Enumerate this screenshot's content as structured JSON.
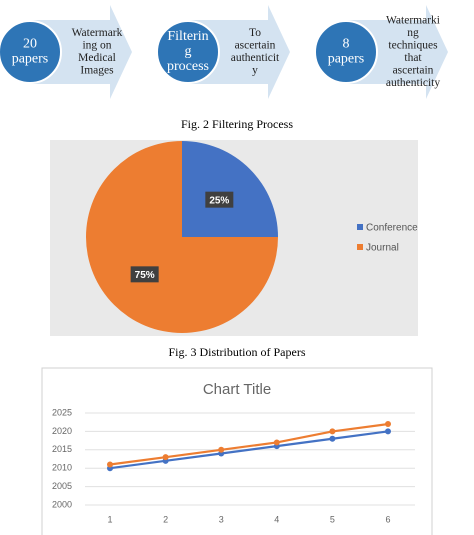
{
  "diagram": {
    "steps": [
      {
        "circle": [
          "20",
          "papers"
        ],
        "arrow": [
          "Watermark",
          "ing on",
          "Medical",
          "Images"
        ]
      },
      {
        "circle": [
          "Filterin",
          "g",
          "process"
        ],
        "arrow": [
          "To",
          "ascertain",
          "authenticit",
          "y"
        ]
      },
      {
        "circle": [
          "8",
          "papers"
        ],
        "arrow": [
          "Watermarki",
          "ng",
          "techniques",
          "that",
          "ascertain",
          "authenticity"
        ]
      }
    ]
  },
  "captions": [
    "Fig. 2 Filtering Process",
    "Fig. 3 Distribution of Papers"
  ],
  "chart_data": [
    {
      "type": "pie",
      "categories": [
        "Conference",
        "Journal"
      ],
      "values": [
        25,
        75
      ],
      "value_labels": [
        "25%",
        "75%"
      ],
      "colors": [
        "#4472c4",
        "#ed7d31"
      ],
      "legend": "right"
    },
    {
      "type": "line",
      "title": "Chart Title",
      "categories": [
        "1",
        "2",
        "3",
        "4",
        "5",
        "6"
      ],
      "series": [
        {
          "color": "#4472c4",
          "values": [
            2010,
            2012,
            2014,
            2016,
            2018,
            2020
          ]
        },
        {
          "color": "#ed7d31",
          "values": [
            2011,
            2013,
            2015,
            2017,
            2020,
            2022
          ]
        }
      ],
      "ylim": [
        2000,
        2025
      ],
      "yticks": [
        2000,
        2005,
        2010,
        2015,
        2020,
        2025
      ],
      "grid": true
    }
  ]
}
